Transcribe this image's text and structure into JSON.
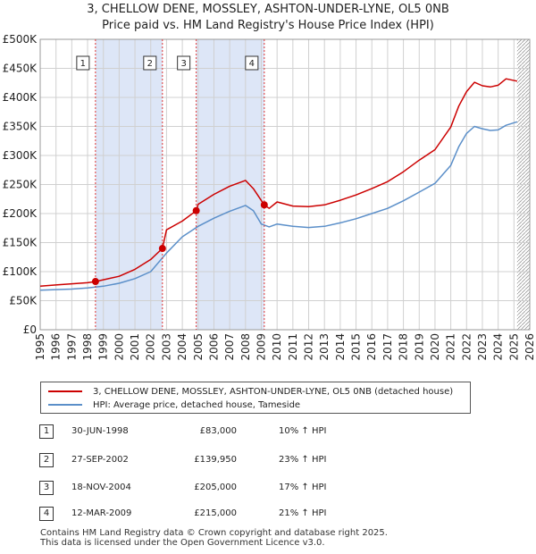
{
  "title_line1": "3, CHELLOW DENE, MOSSLEY, ASHTON-UNDER-LYNE, OL5 0NB",
  "title_line2": "Price paid vs. HM Land Registry's House Price Index (HPI)",
  "chart_data": {
    "type": "line",
    "xlim": [
      1995,
      2026
    ],
    "ylim": [
      0,
      500000
    ],
    "y_ticks": [
      0,
      50000,
      100000,
      150000,
      200000,
      250000,
      300000,
      350000,
      400000,
      450000,
      500000
    ],
    "y_tick_labels": [
      "£0",
      "£50K",
      "£100K",
      "£150K",
      "£200K",
      "£250K",
      "£300K",
      "£350K",
      "£400K",
      "£450K",
      "£500K"
    ],
    "x_ticks": [
      1995,
      1996,
      1997,
      1998,
      1999,
      2000,
      2001,
      2002,
      2003,
      2004,
      2005,
      2006,
      2007,
      2008,
      2009,
      2010,
      2011,
      2012,
      2013,
      2014,
      2015,
      2016,
      2017,
      2018,
      2019,
      2020,
      2021,
      2022,
      2023,
      2024,
      2025,
      2026
    ],
    "x_tick_labels": [
      "1995",
      "1996",
      "1997",
      "1998",
      "1999",
      "2000",
      "2001",
      "2002",
      "2003",
      "2004",
      "2005",
      "2006",
      "2007",
      "2008",
      "2009",
      "2010",
      "2011",
      "2012",
      "2013",
      "2014",
      "2015",
      "2016",
      "2017",
      "2018",
      "2019",
      "2020",
      "2021",
      "2022",
      "2023",
      "2024",
      "2025",
      "2026"
    ],
    "grid": true,
    "shaded_regions": [
      [
        1998.5,
        2002.74
      ],
      [
        2004.88,
        2009.19
      ]
    ],
    "forecast_start": 2025.2,
    "series": [
      {
        "name": "3, CHELLOW DENE, MOSSLEY, ASHTON-UNDER-LYNE, OL5 0NB (detached house)",
        "color": "#cc0000",
        "x": [
          1995,
          1996,
          1997,
          1998,
          1998.5,
          1999,
          2000,
          2001,
          2002,
          2002.74,
          2003,
          2004,
          2004.88,
          2005,
          2006,
          2007,
          2008,
          2008.5,
          2009.19,
          2009.5,
          2010,
          2011,
          2012,
          2013,
          2014,
          2015,
          2016,
          2017,
          2018,
          2019,
          2020,
          2021,
          2021.5,
          2022,
          2022.5,
          2023,
          2023.5,
          2024,
          2024.5,
          2025.2
        ],
        "y": [
          75000,
          77000,
          79000,
          81000,
          83000,
          86000,
          92000,
          104000,
          121000,
          139950,
          172000,
          187000,
          205000,
          216000,
          233000,
          247000,
          257000,
          243000,
          215000,
          209000,
          220000,
          213000,
          212000,
          215000,
          223000,
          232000,
          243000,
          255000,
          272000,
          292000,
          310000,
          349000,
          385000,
          410000,
          426000,
          420000,
          418000,
          421000,
          432000,
          428000
        ]
      },
      {
        "name": "HPI: Average price, detached house, Tameside",
        "color": "#5b8fc9",
        "x": [
          1995,
          1996,
          1997,
          1998,
          1999,
          2000,
          2001,
          2002,
          2003,
          2004,
          2005,
          2006,
          2007,
          2008,
          2008.5,
          2009,
          2009.5,
          2010,
          2011,
          2012,
          2013,
          2014,
          2015,
          2016,
          2017,
          2018,
          2019,
          2020,
          2021,
          2021.5,
          2022,
          2022.5,
          2023,
          2023.5,
          2024,
          2024.5,
          2025.2
        ],
        "y": [
          68000,
          69000,
          70000,
          72000,
          75000,
          80000,
          88000,
          100000,
          132000,
          160000,
          178000,
          192000,
          204000,
          214000,
          205000,
          182000,
          177000,
          182000,
          178000,
          176000,
          178000,
          184000,
          191000,
          200000,
          209000,
          222000,
          237000,
          252000,
          283000,
          315000,
          338000,
          350000,
          346000,
          343000,
          344000,
          352000,
          358000
        ]
      }
    ],
    "sales": [
      {
        "label": "1",
        "x": 1998.5,
        "y": 83000
      },
      {
        "label": "2",
        "x": 2002.74,
        "y": 139950
      },
      {
        "label": "3",
        "x": 2004.88,
        "y": 205000
      },
      {
        "label": "4",
        "x": 2009.19,
        "y": 215000
      }
    ]
  },
  "legend": {
    "property": "3, CHELLOW DENE, MOSSLEY, ASHTON-UNDER-LYNE, OL5 0NB (detached house)",
    "hpi": "HPI: Average price, detached house, Tameside"
  },
  "transactions": [
    {
      "num": "1",
      "date": "30-JUN-1998",
      "price": "£83,000",
      "hpi": "10% ↑ HPI"
    },
    {
      "num": "2",
      "date": "27-SEP-2002",
      "price": "£139,950",
      "hpi": "23% ↑ HPI"
    },
    {
      "num": "3",
      "date": "18-NOV-2004",
      "price": "£205,000",
      "hpi": "17% ↑ HPI"
    },
    {
      "num": "4",
      "date": "12-MAR-2009",
      "price": "£215,000",
      "hpi": "21% ↑ HPI"
    }
  ],
  "footer": {
    "line1": "Contains HM Land Registry data © Crown copyright and database right 2025.",
    "line2": "This data is licensed under the Open Government Licence v3.0."
  },
  "colors": {
    "property": "#cc0000",
    "hpi": "#5b8fc9",
    "shade": "#dde6f7",
    "grid": "#d0d0d0"
  }
}
